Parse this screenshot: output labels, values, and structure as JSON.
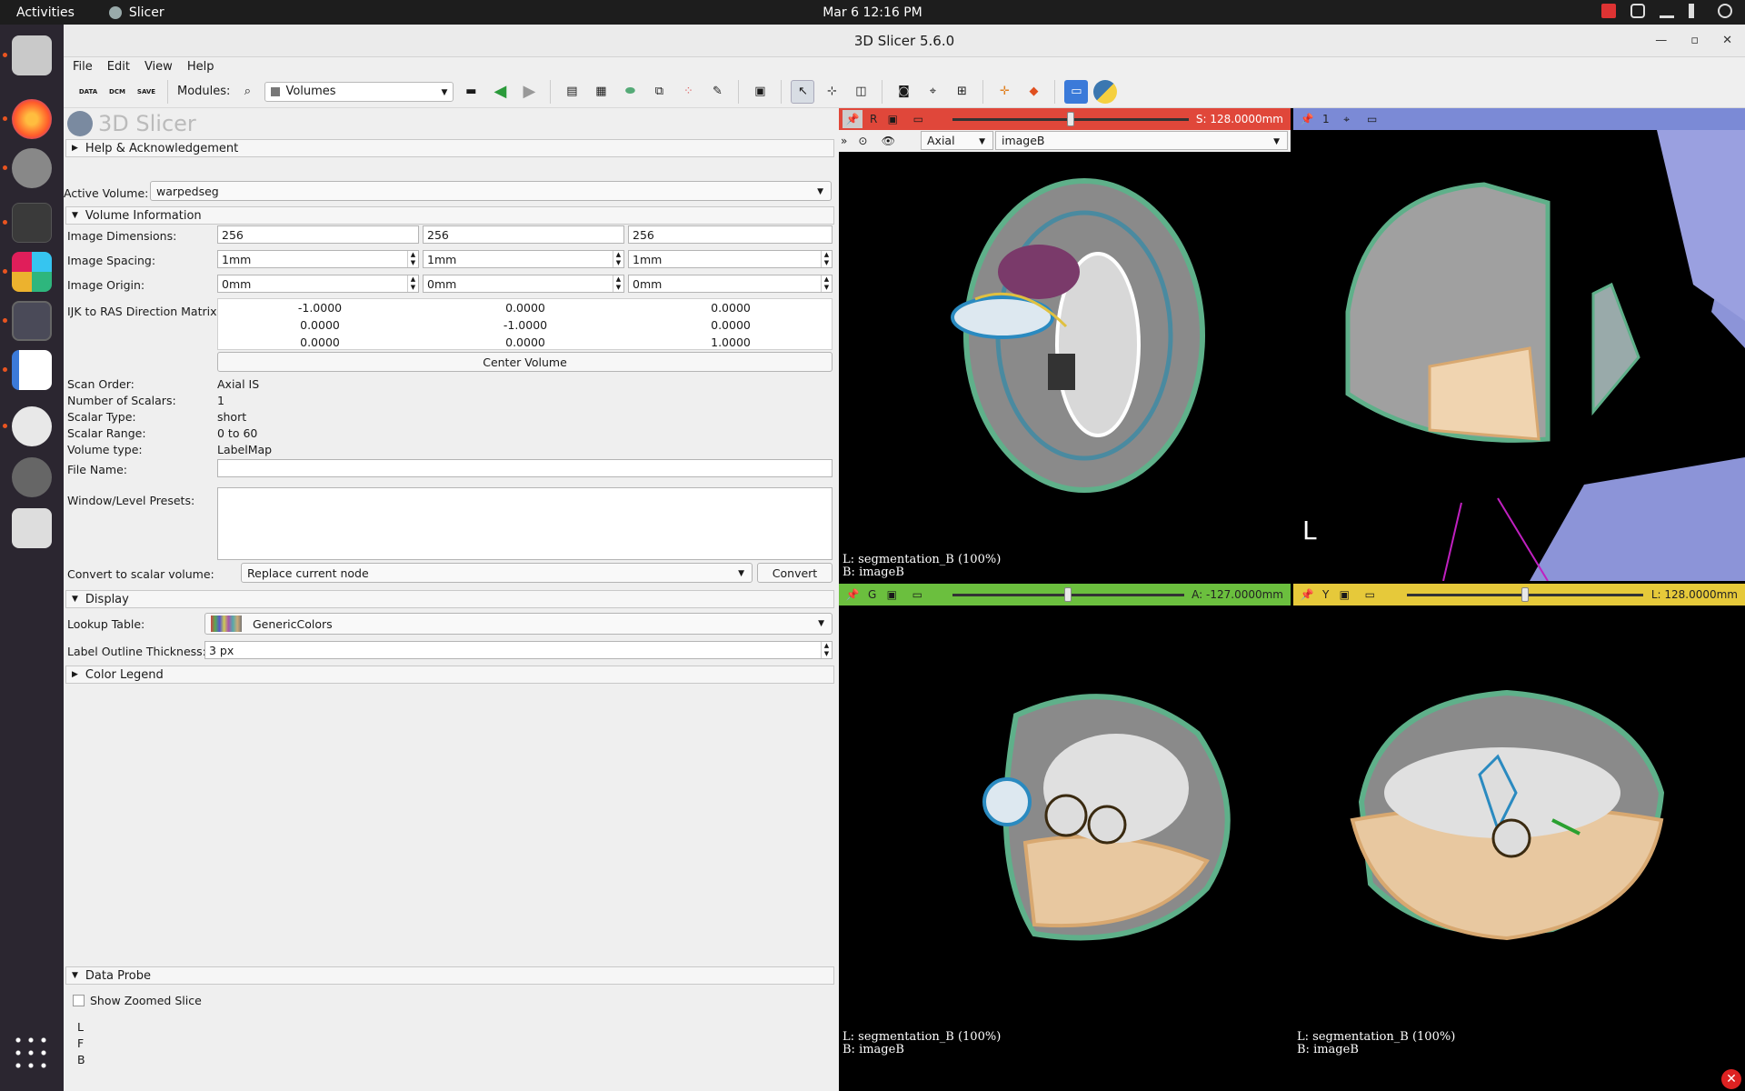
{
  "topbar": {
    "activities": "Activities",
    "app": "Slicer",
    "clock": "Mar 6  12:16 PM"
  },
  "window": {
    "title": "3D Slicer 5.6.0"
  },
  "menu": [
    "File",
    "Edit",
    "View",
    "Help"
  ],
  "toolbar": {
    "data_label": "DATA",
    "dcm_label": "DCM",
    "save_label": "SAVE",
    "modules_label": "Modules:",
    "module_value": "Volumes"
  },
  "panel": {
    "logo": "3D Slicer",
    "help_section": "Help & Acknowledgement",
    "active_volume_label": "Active Volume:",
    "active_volume": "warpedseg",
    "volume_info_section": "Volume Information",
    "image_dimensions_label": "Image Dimensions:",
    "image_dimensions": [
      "256",
      "256",
      "256"
    ],
    "image_spacing_label": "Image Spacing:",
    "image_spacing": [
      "1mm",
      "1mm",
      "1mm"
    ],
    "image_origin_label": "Image Origin:",
    "image_origin": [
      "0mm",
      "0mm",
      "0mm"
    ],
    "direction_label": "IJK to RAS Direction Matrix:",
    "direction_matrix": [
      [
        "-1.0000",
        "0.0000",
        "0.0000"
      ],
      [
        "0.0000",
        "-1.0000",
        "0.0000"
      ],
      [
        "0.0000",
        "0.0000",
        "1.0000"
      ]
    ],
    "center_volume": "Center Volume",
    "scan_order_label": "Scan Order:",
    "scan_order": "Axial IS",
    "num_scalars_label": "Number of Scalars:",
    "num_scalars": "1",
    "scalar_type_label": "Scalar Type:",
    "scalar_type": "short",
    "scalar_range_label": "Scalar Range:",
    "scalar_range": "0 to 60",
    "volume_type_label": "Volume type:",
    "volume_type": "LabelMap",
    "file_name_label": "File Name:",
    "file_name": "",
    "wl_presets_label": "Window/Level Presets:",
    "convert_label": "Convert to scalar volume:",
    "convert_option": "Replace current node",
    "convert_button": "Convert",
    "display_section": "Display",
    "lookup_label": "Lookup Table:",
    "lookup_value": "GenericColors",
    "outline_label": "Label Outline Thickness:",
    "outline_value": "3 px",
    "color_legend_section": "Color Legend",
    "data_probe_section": "Data Probe",
    "show_zoomed": "Show Zoomed Slice",
    "probe_lines": [
      "L",
      "F",
      "B"
    ]
  },
  "views": {
    "red": {
      "letter": "R",
      "offset": "S: 128.0000mm",
      "orientation": "Axial",
      "background": "imageB",
      "label_line": "L: segmentation_B (100%)",
      "bg_line": "B: imageB",
      "color": "#e0473a",
      "slider_pos": 0.5
    },
    "threed": {
      "index": "1",
      "color": "#7b8ad6"
    },
    "green": {
      "letter": "G",
      "offset": "A: -127.0000mm",
      "label_line": "L: segmentation_B (100%)",
      "bg_line": "B: imageB",
      "color": "#6bbf3e",
      "slider_pos": 0.5
    },
    "yellow": {
      "letter": "Y",
      "offset": "L: 128.0000mm",
      "label_line": "L: segmentation_B (100%)",
      "bg_line": "B: imageB",
      "color": "#e6c93a",
      "slider_pos": 0.5
    }
  }
}
